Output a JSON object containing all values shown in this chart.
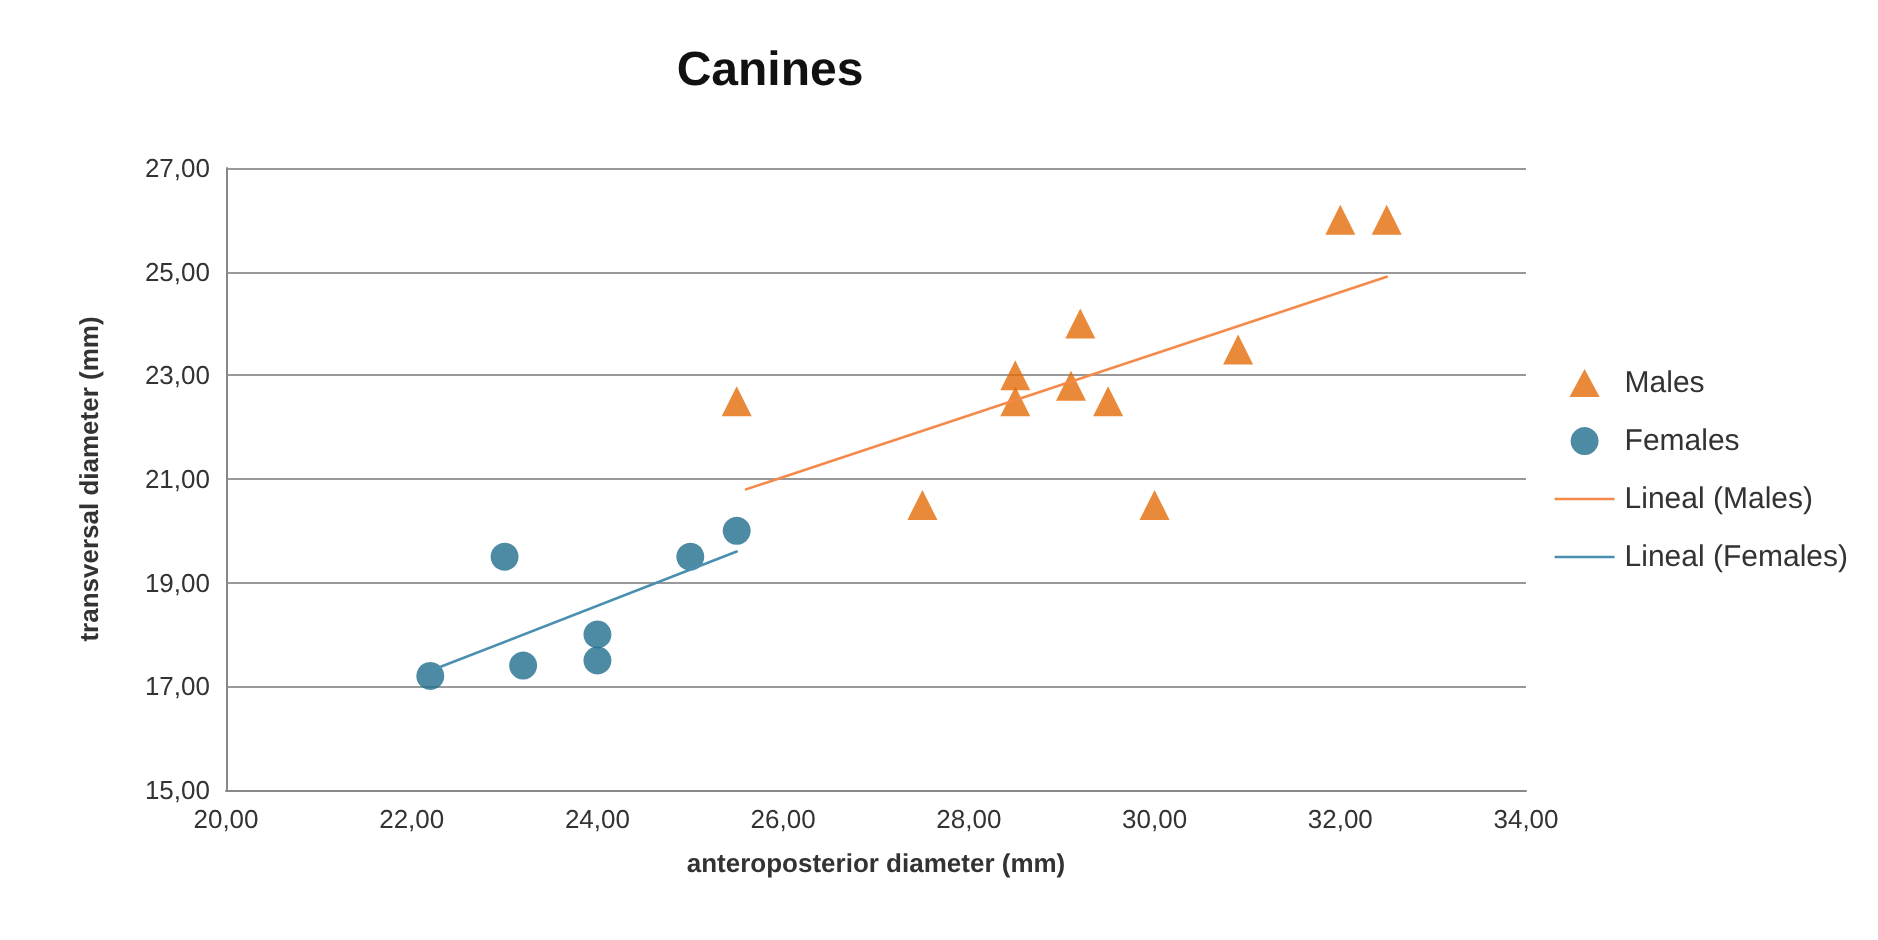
{
  "chart_data": {
    "type": "scatter",
    "title": "Canines",
    "xlabel": "anteroposterior diameter (mm)",
    "ylabel": "transversal diameter (mm)",
    "xlim": [
      20,
      34
    ],
    "ylim": [
      15,
      27
    ],
    "xticks": [
      {
        "value": 20,
        "label": "20,00"
      },
      {
        "value": 22,
        "label": "22,00"
      },
      {
        "value": 24,
        "label": "24,00"
      },
      {
        "value": 26,
        "label": "26,00"
      },
      {
        "value": 28,
        "label": "28,00"
      },
      {
        "value": 30,
        "label": "30,00"
      },
      {
        "value": 32,
        "label": "32,00"
      },
      {
        "value": 34,
        "label": "34,00"
      }
    ],
    "yticks": [
      {
        "value": 15,
        "label": "15,00"
      },
      {
        "value": 17,
        "label": "17,00"
      },
      {
        "value": 19,
        "label": "19,00"
      },
      {
        "value": 21,
        "label": "21,00"
      },
      {
        "value": 23,
        "label": "23,00"
      },
      {
        "value": 25,
        "label": "25,00"
      },
      {
        "value": 27,
        "label": "27,00"
      }
    ],
    "grid": "y",
    "legend": "right",
    "series": [
      {
        "name": "Males",
        "marker": "triangle",
        "color": "#e36c09",
        "x": [
          25.5,
          27.5,
          28.5,
          28.5,
          29.1,
          29.2,
          29.5,
          30,
          30.9,
          32,
          32.5
        ],
        "values": [
          22.5,
          20.5,
          23,
          22.5,
          22.8,
          24,
          22.5,
          20.5,
          23.5,
          26,
          26
        ]
      },
      {
        "name": "Females",
        "marker": "circle",
        "color": "#1f6e8c",
        "x": [
          22.2,
          23,
          23.2,
          24,
          24,
          25,
          25.5
        ],
        "values": [
          17.2,
          19.5,
          17.4,
          18,
          17.5,
          19.5,
          20
        ]
      },
      {
        "name": "Lineal (Males)",
        "type": "line",
        "marker": "none",
        "color": "#f4894a",
        "x": [
          25.6,
          32.5
        ],
        "values": [
          20.8,
          24.9
        ]
      },
      {
        "name": "Lineal (Females)",
        "type": "line",
        "marker": "none",
        "color": "#4a8fb0",
        "x": [
          22.2,
          25.5
        ],
        "values": [
          17.3,
          19.6
        ]
      }
    ]
  }
}
